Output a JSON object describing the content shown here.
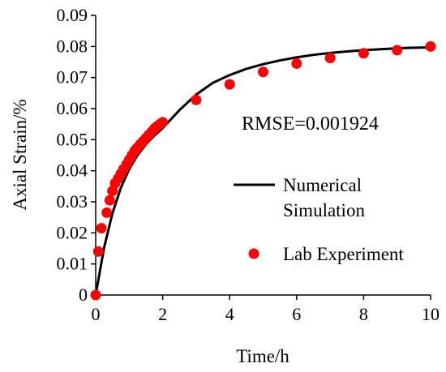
{
  "chart_data": {
    "type": "line",
    "xlabel": "Time/h",
    "ylabel": "Axial Strain/%",
    "xlim": [
      0,
      10
    ],
    "ylim": [
      0,
      0.09
    ],
    "x_ticks": [
      0,
      2,
      4,
      6,
      8,
      10
    ],
    "x_tick_labels": [
      "0",
      "2",
      "4",
      "6",
      "8",
      "10"
    ],
    "y_ticks": [
      0,
      0.01,
      0.02,
      0.03,
      0.04,
      0.05,
      0.06,
      0.07,
      0.08,
      0.09
    ],
    "y_tick_labels": [
      "0",
      "0.01",
      "0.02",
      "0.03",
      "0.04",
      "0.05",
      "0.06",
      "0.07",
      "0.08",
      "0.09"
    ],
    "grid": false,
    "legend_position": "right",
    "annotation": "RMSE=0.001924",
    "series": [
      {
        "name": "Numerical Simulation",
        "label_lines": [
          "Numerical",
          "Simulation"
        ],
        "kind": "line",
        "color": "#000000",
        "x": [
          0,
          0.25,
          0.5,
          0.75,
          1.0,
          1.25,
          1.5,
          1.75,
          2.0,
          2.5,
          3.0,
          3.5,
          4.0,
          4.5,
          5.0,
          5.5,
          6.0,
          6.5,
          7.0,
          7.5,
          8.0,
          8.5,
          9.0,
          9.5,
          10.0
        ],
        "y": [
          0,
          0.0152,
          0.0263,
          0.0345,
          0.0405,
          0.045,
          0.0485,
          0.0513,
          0.0537,
          0.0595,
          0.0645,
          0.0683,
          0.0708,
          0.0728,
          0.0743,
          0.0755,
          0.0765,
          0.0773,
          0.0779,
          0.0784,
          0.0788,
          0.0791,
          0.0794,
          0.0796,
          0.0797
        ]
      },
      {
        "name": "Lab Experiment",
        "label_lines": [
          "Lab Experiment"
        ],
        "kind": "scatter",
        "color": "#ff0000",
        "x": [
          0.0,
          0.08,
          0.17,
          0.33,
          0.42,
          0.5,
          0.58,
          0.67,
          0.75,
          0.83,
          0.92,
          1.0,
          1.08,
          1.17,
          1.25,
          1.33,
          1.42,
          1.5,
          1.58,
          1.67,
          1.75,
          1.83,
          1.92,
          2.0,
          3.0,
          4.0,
          5.0,
          6.0,
          7.0,
          8.0,
          9.0,
          10.0
        ],
        "y": [
          0.0,
          0.014,
          0.0215,
          0.0265,
          0.0305,
          0.0335,
          0.036,
          0.0375,
          0.039,
          0.0405,
          0.042,
          0.0435,
          0.045,
          0.0465,
          0.0475,
          0.0485,
          0.0495,
          0.0505,
          0.0515,
          0.0525,
          0.0535,
          0.0543,
          0.055,
          0.0556,
          0.0628,
          0.0678,
          0.0718,
          0.0745,
          0.0763,
          0.0778,
          0.0788,
          0.08
        ]
      }
    ]
  }
}
